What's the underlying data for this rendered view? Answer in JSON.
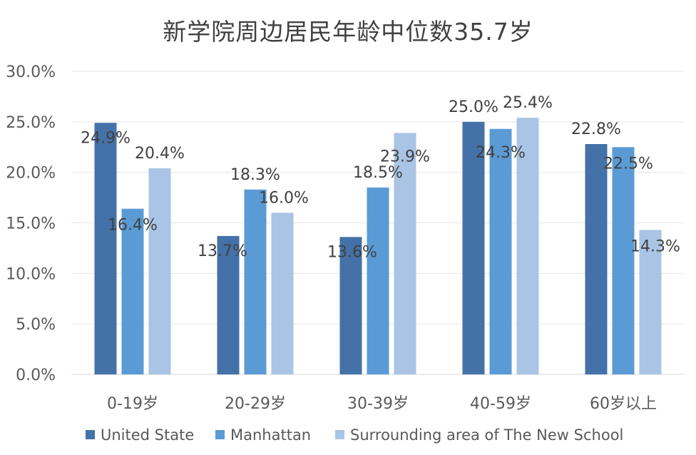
{
  "chart_data": {
    "type": "bar",
    "title": "新学院周边居民年龄中位数35.7岁",
    "categories": [
      "0-19岁",
      "20-29岁",
      "30-39岁",
      "40-59岁",
      "60岁以上"
    ],
    "series": [
      {
        "name": "United State",
        "color": "#4472a8",
        "values": [
          24.9,
          13.7,
          13.6,
          25.0,
          22.8
        ]
      },
      {
        "name": "Manhattan",
        "color": "#5b9bd5",
        "values": [
          16.4,
          18.3,
          18.5,
          24.3,
          22.5
        ]
      },
      {
        "name": "Surrounding area of The New School",
        "color": "#a9c4e4",
        "values": [
          20.4,
          16.0,
          23.9,
          25.4,
          14.3
        ]
      }
    ],
    "y_ticks": [
      "0.0%",
      "5.0%",
      "10.0%",
      "15.0%",
      "20.0%",
      "25.0%",
      "30.0%"
    ],
    "ylim": [
      0,
      30
    ],
    "ytick_step": 5,
    "value_format": "percent-1dp",
    "grid": true,
    "legend_position": "bottom-left"
  }
}
